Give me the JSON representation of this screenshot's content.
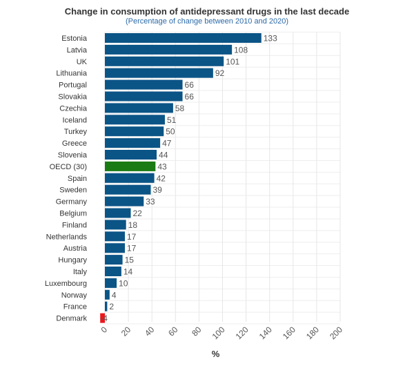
{
  "chart_data": {
    "type": "bar",
    "orientation": "horizontal",
    "title": "Change in consumption of antidepressant drugs in the last decade",
    "subtitle": "(Percentage of change between 2010 and 2020)",
    "xlabel": "%",
    "xlim": [
      0,
      200
    ],
    "xticks": [
      0,
      20,
      40,
      60,
      80,
      100,
      120,
      140,
      160,
      180,
      200
    ],
    "grid": true,
    "categories": [
      "Estonia",
      "Latvia",
      "UK",
      "Lithuania",
      "Portugal",
      "Slovakia",
      "Czechia",
      "Iceland",
      "Turkey",
      "Greece",
      "Slovenia",
      "OECD (30)",
      "Spain",
      "Sweden",
      "Germany",
      "Belgium",
      "Finland",
      "Netherlands",
      "Austria",
      "Hungary",
      "Italy",
      "Luxembourg",
      "Norway",
      "France",
      "Denmark"
    ],
    "values": [
      133,
      108,
      101,
      92,
      66,
      66,
      58,
      51,
      50,
      47,
      44,
      43,
      42,
      39,
      33,
      22,
      18,
      17,
      17,
      15,
      14,
      10,
      4,
      2,
      -4
    ],
    "colors": {
      "default": "#0b5486",
      "highlight": "#1a7a14",
      "negative": "#e8191f"
    },
    "highlight_category": "OECD (30)"
  }
}
